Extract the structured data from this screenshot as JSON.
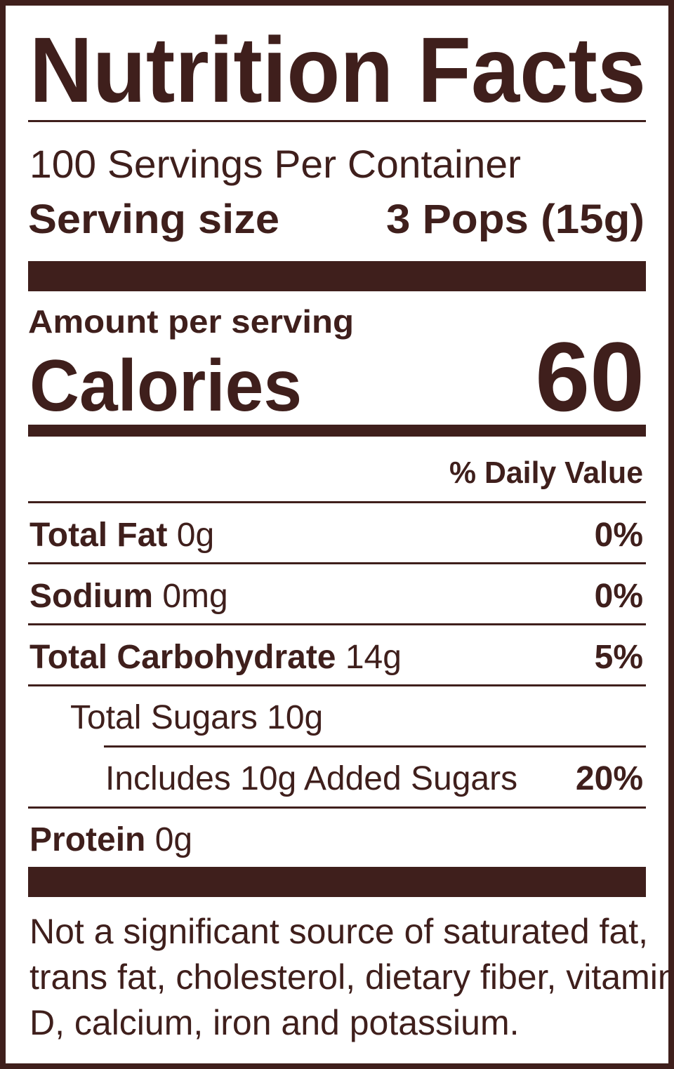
{
  "title": "Nutrition Facts",
  "servings": "100 Servings Per Container",
  "serving_size": {
    "label": "Serving size",
    "value": "3 Pops (15g)"
  },
  "amount_per_serving": "Amount per serving",
  "calories": {
    "label": "Calories",
    "value": 60
  },
  "daily_value_header": "% Daily Value",
  "nutrients": [
    {
      "name": "Total Fat",
      "amount": "0g",
      "dv": "0%"
    },
    {
      "name": "Sodium",
      "amount": "0mg",
      "dv": "0%"
    },
    {
      "name": "Total Carbohydrate",
      "amount": "14g",
      "dv": "5%"
    },
    {
      "name": "Total Sugars 10g"
    },
    {
      "name": "Includes 10g Added Sugars",
      "dv": "20%"
    },
    {
      "name": "Protein",
      "amount": "0g"
    }
  ],
  "footnote": [
    "Not a significant source of saturated fat,",
    "trans fat, cholesterol, dietary fiber, vitamin",
    "D, calcium, iron and potassium."
  ]
}
